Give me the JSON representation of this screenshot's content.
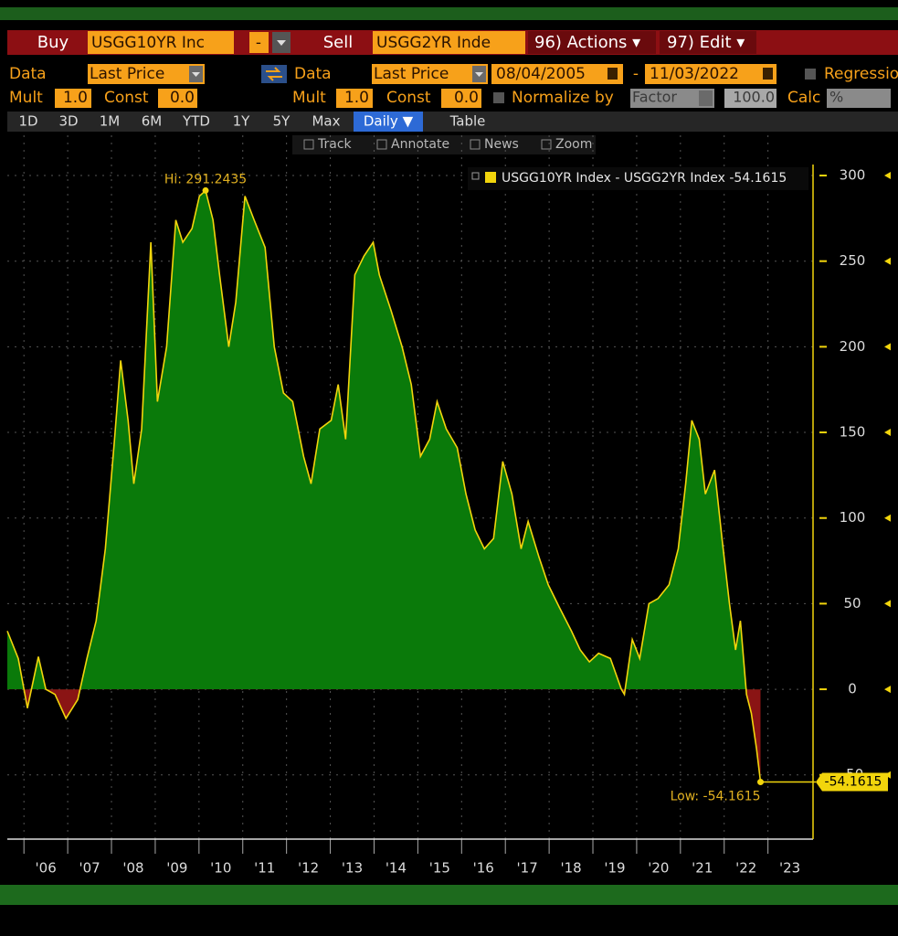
{
  "toolbar": {
    "buy": "Buy",
    "buy_ticker": "USGG10YR Inc",
    "minus": "-",
    "sell": "Sell",
    "sell_ticker": "USGG2YR Inde",
    "actions": "96) Actions ▾",
    "edit": "97) Edit ▾",
    "data1": "Data",
    "field1": "Last Price",
    "data2": "Data",
    "field2": "Last Price",
    "start": "08/04/2005",
    "dash": "-",
    "end": "11/03/2022",
    "regression": "Regression",
    "mult1": "Mult",
    "mult1_val": "1.0",
    "const1": "Const",
    "const1_val": "0.0",
    "mult2": "Mult",
    "mult2_val": "1.0",
    "const2": "Const",
    "const2_val": "0.0",
    "normalize": "Normalize by",
    "factor": "Factor",
    "factor_val": "100.0",
    "calc": "Calc",
    "calc_val": "%",
    "tabs": [
      "1D",
      "3D",
      "1M",
      "6M",
      "YTD",
      "1Y",
      "5Y",
      "Max"
    ],
    "daily": "Daily ▼",
    "table": "Table",
    "tools": [
      "Track",
      "Annotate",
      "News",
      "Zoom"
    ]
  },
  "chart_data": {
    "type": "area",
    "x": [
      2005.62,
      2005.87,
      2006.08,
      2006.33,
      2006.5,
      2006.71,
      2006.96,
      2007.23,
      2007.44,
      2007.65,
      2007.86,
      2008.07,
      2008.21,
      2008.38,
      2008.51,
      2008.69,
      2008.9,
      2009.05,
      2009.26,
      2009.47,
      2009.63,
      2009.84,
      2010.01,
      2010.15,
      2010.32,
      2010.47,
      2010.68,
      2010.84,
      2011.05,
      2011.26,
      2011.51,
      2011.72,
      2011.93,
      2012.14,
      2012.39,
      2012.56,
      2012.76,
      2013.02,
      2013.18,
      2013.35,
      2013.56,
      2013.77,
      2013.98,
      2014.12,
      2014.39,
      2014.64,
      2014.85,
      2015.06,
      2015.27,
      2015.44,
      2015.65,
      2015.9,
      2016.1,
      2016.31,
      2016.52,
      2016.73,
      2016.94,
      2017.15,
      2017.36,
      2017.52,
      2017.77,
      2017.98,
      2018.23,
      2018.51,
      2018.71,
      2018.92,
      2019.13,
      2019.4,
      2019.65,
      2019.72,
      2019.9,
      2020.07,
      2020.28,
      2020.49,
      2020.74,
      2020.95,
      2021.12,
      2021.26,
      2021.43,
      2021.57,
      2021.78,
      2021.95,
      2022.12,
      2022.26,
      2022.37,
      2022.51,
      2022.62,
      2022.74,
      2022.83
    ],
    "series": [
      {
        "name": "USGG10YR Index - USGG2YR Index -54.1615",
        "color": "#f2d50c",
        "values": [
          34,
          18,
          -11,
          19,
          0,
          -3,
          -17,
          -6,
          18,
          40,
          82,
          146,
          192,
          157,
          120,
          152,
          261,
          168,
          200,
          274,
          261,
          269,
          288,
          291.2435,
          274,
          242,
          200,
          226,
          288,
          274,
          258,
          200,
          173,
          168,
          136,
          120,
          152,
          157,
          178,
          146,
          242,
          253,
          261,
          242,
          221,
          200,
          178,
          136,
          146,
          168,
          152,
          141,
          114,
          93,
          82,
          88,
          133,
          114,
          82,
          98,
          77,
          61,
          48,
          34,
          23,
          16,
          21,
          18,
          0,
          -3,
          29,
          18,
          50,
          53,
          61,
          82,
          120,
          157,
          146,
          114,
          128,
          88,
          50,
          23,
          40,
          -3,
          -14,
          -35,
          -54.1615
        ]
      }
    ],
    "fill_positive": "#0a7a0a",
    "fill_negative": "#8a1414",
    "annotations": [
      "Hi: 291.2435",
      "Low: -54.1615"
    ],
    "xlim": [
      2005.62,
      2024.03
    ],
    "xticks": [
      {
        "value": 2006,
        "label": "'06"
      },
      {
        "value": 2007,
        "label": "'07"
      },
      {
        "value": 2008,
        "label": "'08"
      },
      {
        "value": 2009,
        "label": "'09"
      },
      {
        "value": 2010,
        "label": "'10"
      },
      {
        "value": 2011,
        "label": "'11"
      },
      {
        "value": 2012,
        "label": "'12"
      },
      {
        "value": 2013,
        "label": "'13"
      },
      {
        "value": 2014,
        "label": "'14"
      },
      {
        "value": 2015,
        "label": "'15"
      },
      {
        "value": 2016,
        "label": "'16"
      },
      {
        "value": 2017,
        "label": "'17"
      },
      {
        "value": 2018,
        "label": "'18"
      },
      {
        "value": 2019,
        "label": "'19"
      },
      {
        "value": 2020,
        "label": "'20"
      },
      {
        "value": 2021,
        "label": "'21"
      },
      {
        "value": 2022,
        "label": "'22"
      },
      {
        "value": 2023,
        "label": "'23"
      }
    ],
    "ylim": [
      -87.5,
      323.5
    ],
    "yticks": [
      -50,
      0,
      50,
      100,
      150,
      200,
      250,
      300
    ],
    "grid": true
  }
}
